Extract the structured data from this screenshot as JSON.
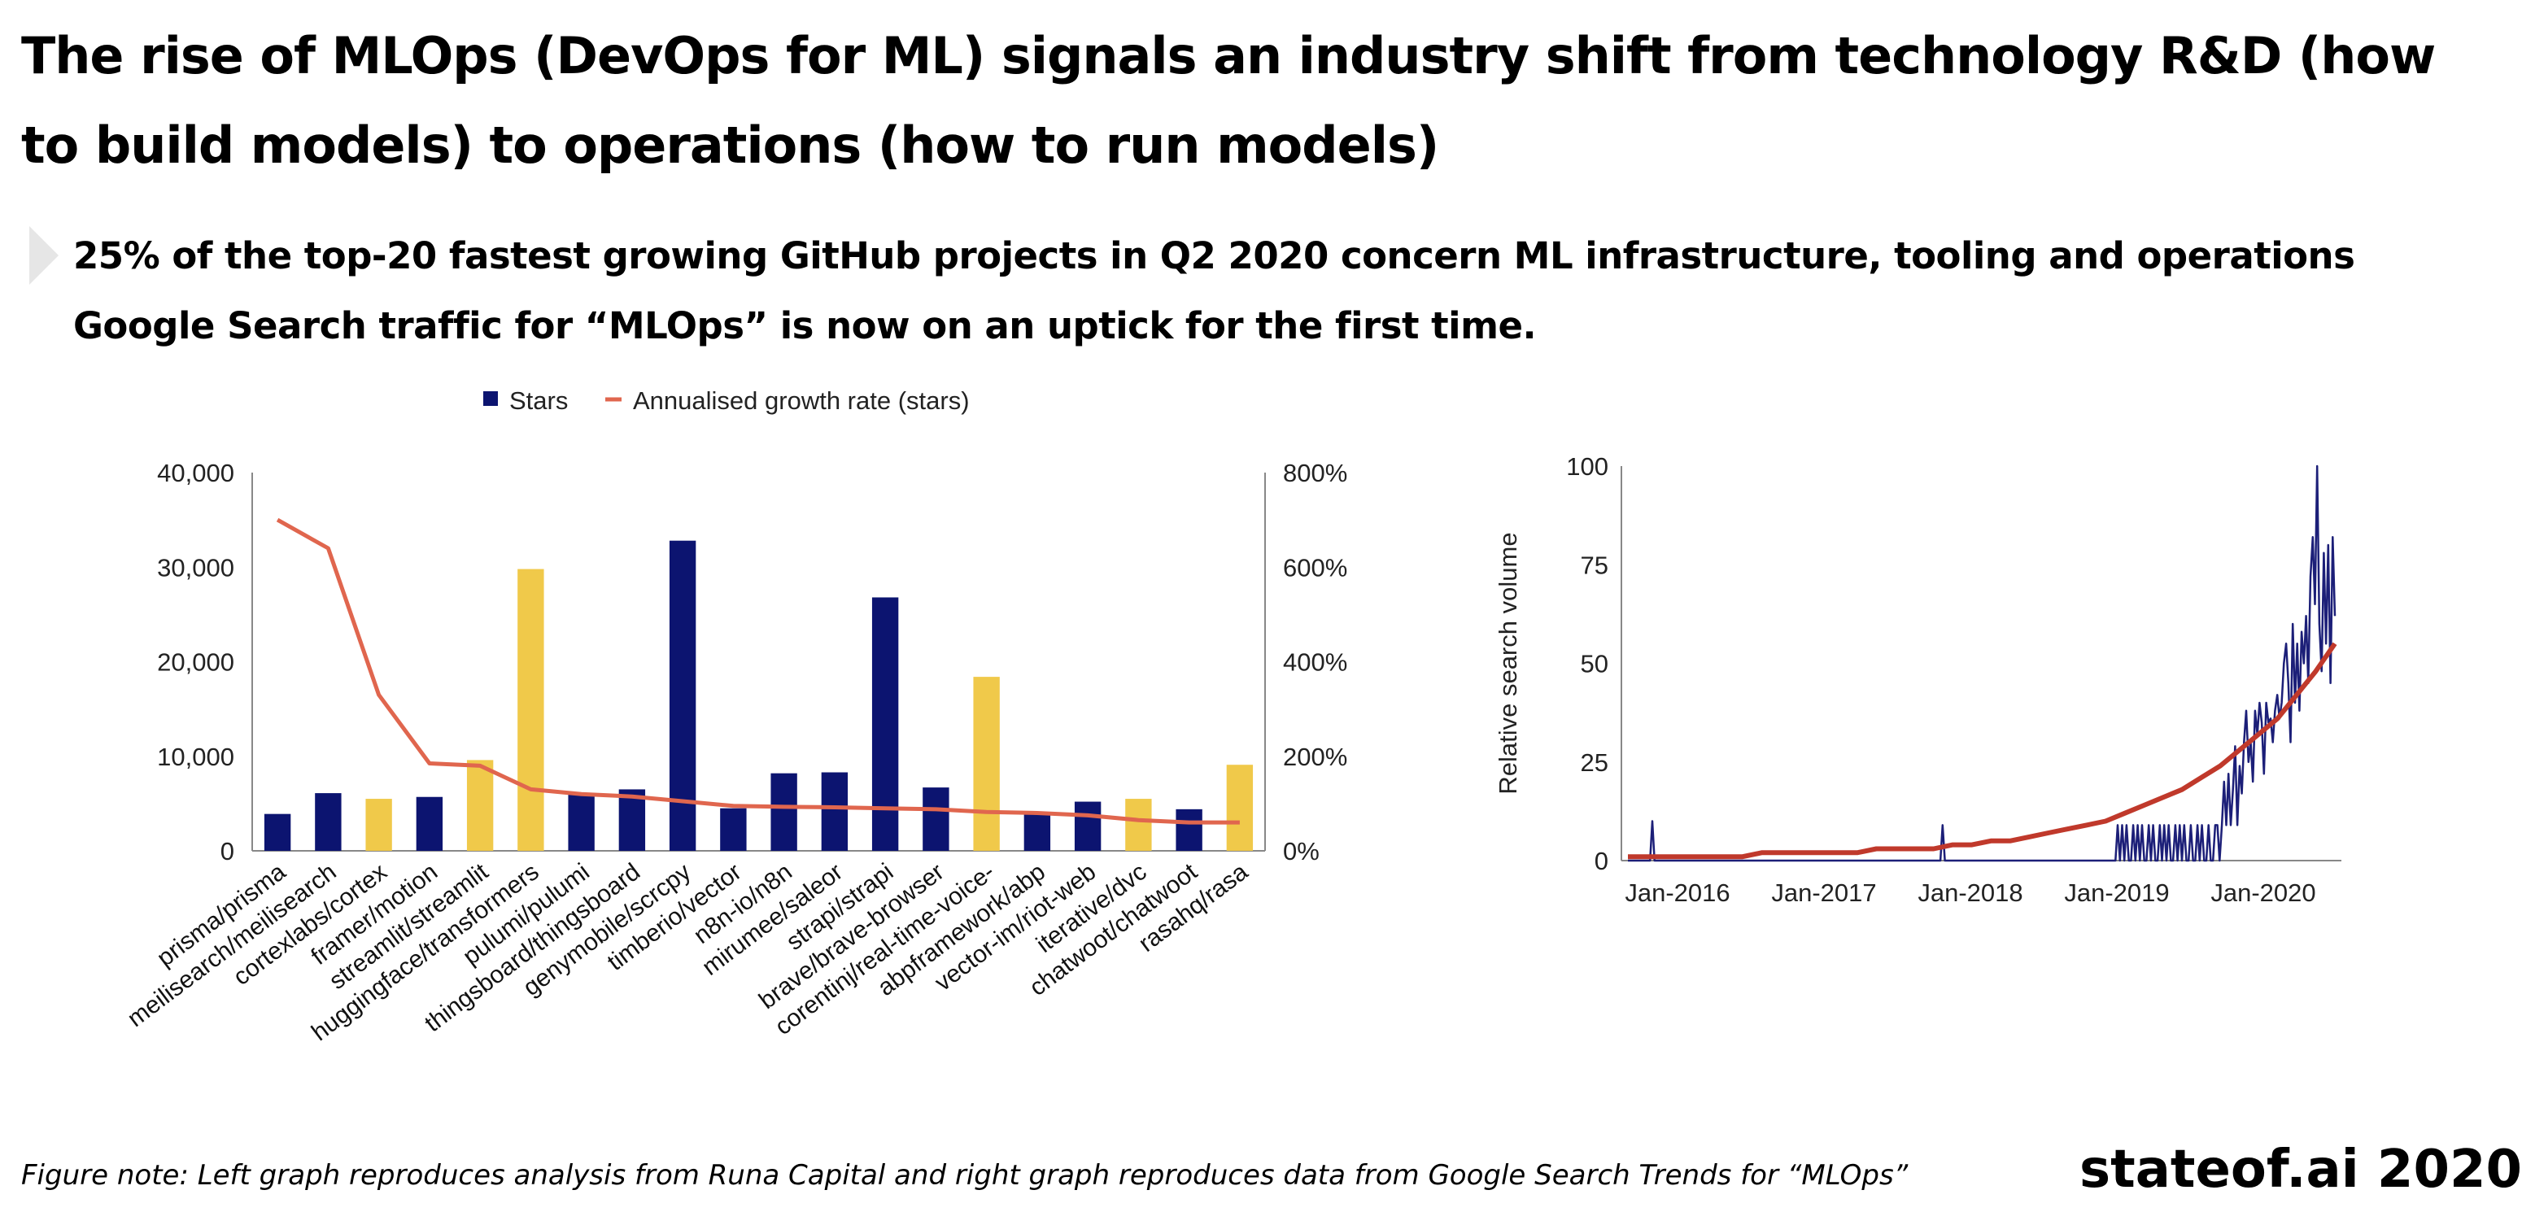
{
  "slide": {
    "title": "The rise of MLOps (DevOps for ML) signals an industry shift from technology R&D (how to build models) to operations (how to run models)",
    "subtitle_line1": "25% of the top-20 fastest growing GitHub projects in Q2 2020 concern ML infrastructure, tooling and operations",
    "subtitle_line2": "Google Search traffic for “MLOps” is now on an uptick for the first time.",
    "footnote": "Figure note: Left graph reproduces analysis from Runa Capital and right graph reproduces data from Google Search Trends for “MLOps”",
    "brand": "stateof.ai 2020"
  },
  "colors": {
    "bar_default": "#0c1470",
    "bar_highlight": "#f0c94a",
    "growth_line": "#e0664e",
    "trend_line": "#1c1f78",
    "trend_fit": "#c0392b",
    "axis": "#888888"
  },
  "chart_data": [
    {
      "type": "bar",
      "legend": [
        "Stars",
        "Annualised growth rate (stars)"
      ],
      "categories": [
        "prisma/prisma",
        "meilisearch/meilisearch",
        "cortexlabs/cortex",
        "framer/motion",
        "streamlit/streamlit",
        "huggingface/transformers",
        "pulumi/pulumi",
        "thingsboard/thingsboard",
        "genymobile/scrcpy",
        "timberio/vector",
        "n8n-io/n8n",
        "mirumee/saleor",
        "strapi/strapi",
        "brave/brave-browser",
        "corentinj/real-time-voice-",
        "abpframework/abp",
        "vector-im/riot-web",
        "iterative/dvc",
        "chatwoot/chatwoot",
        "rasahq/rasa"
      ],
      "highlighted": [
        false,
        false,
        true,
        false,
        true,
        true,
        false,
        false,
        false,
        false,
        false,
        false,
        false,
        false,
        true,
        false,
        false,
        true,
        false,
        true
      ],
      "series": [
        {
          "name": "Stars",
          "axis": "left",
          "values": [
            3900,
            6100,
            5500,
            5700,
            9600,
            29800,
            6000,
            6500,
            32800,
            4500,
            8200,
            8300,
            26800,
            6700,
            18400,
            4000,
            5200,
            5500,
            4400,
            9100
          ]
        },
        {
          "name": "Annualised growth rate (stars)",
          "axis": "right",
          "values": [
            700,
            640,
            330,
            185,
            180,
            130,
            120,
            115,
            105,
            95,
            93,
            92,
            90,
            88,
            82,
            80,
            75,
            65,
            60,
            60
          ]
        }
      ],
      "ylim_left": [
        0,
        40000
      ],
      "ylim_right": [
        0,
        800
      ],
      "left_ticks": [
        "40,000",
        "30,000",
        "20,000",
        "10,000",
        "0"
      ],
      "right_ticks": [
        "800%",
        "600%",
        "400%",
        "200%",
        "0%"
      ]
    },
    {
      "type": "line",
      "ylabel": "Relative search volume",
      "yticks": [
        "100",
        "75",
        "50",
        "25",
        "0"
      ],
      "xticks": [
        "Jan-2016",
        "Jan-2017",
        "Jan-2018",
        "Jan-2019",
        "Jan-2020"
      ],
      "ylim": [
        0,
        100
      ],
      "weekly_index": {
        "note": "weekly relative search volume, start Oct-2015",
        "values": [
          0,
          0,
          0,
          0,
          0,
          0,
          0,
          0,
          0,
          0,
          0,
          10,
          0,
          0,
          0,
          0,
          0,
          0,
          0,
          0,
          0,
          0,
          0,
          0,
          0,
          0,
          0,
          0,
          0,
          0,
          0,
          0,
          0,
          0,
          0,
          0,
          0,
          0,
          0,
          0,
          0,
          0,
          0,
          0,
          0,
          0,
          0,
          0,
          0,
          0,
          0,
          0,
          0,
          0,
          0,
          0,
          0,
          0,
          0,
          0,
          0,
          0,
          0,
          0,
          0,
          0,
          0,
          0,
          0,
          0,
          0,
          0,
          0,
          0,
          0,
          0,
          0,
          0,
          0,
          0,
          0,
          0,
          0,
          0,
          0,
          0,
          0,
          0,
          0,
          0,
          0,
          0,
          0,
          0,
          0,
          0,
          0,
          0,
          0,
          0,
          0,
          0,
          0,
          0,
          0,
          0,
          0,
          0,
          0,
          0,
          0,
          0,
          0,
          0,
          0,
          0,
          0,
          0,
          0,
          0,
          0,
          0,
          0,
          0,
          0,
          0,
          0,
          0,
          0,
          0,
          0,
          0,
          0,
          0,
          0,
          0,
          0,
          0,
          0,
          0,
          0,
          0,
          9,
          0,
          0,
          0,
          0,
          0,
          0,
          0,
          0,
          0,
          0,
          0,
          0,
          0,
          0,
          0,
          0,
          0,
          0,
          0,
          0,
          0,
          0,
          0,
          0,
          0,
          0,
          0,
          0,
          0,
          0,
          0,
          0,
          0,
          0,
          0,
          0,
          0,
          0,
          0,
          0,
          0,
          0,
          0,
          0,
          0,
          0,
          0,
          0,
          0,
          0,
          0,
          0,
          0,
          0,
          0,
          0,
          0,
          0,
          0,
          0,
          0,
          0,
          0,
          0,
          0,
          0,
          0,
          0,
          0,
          0,
          0,
          0,
          0,
          0,
          0,
          0,
          0,
          0,
          9,
          0,
          9,
          0,
          9,
          0,
          0,
          9,
          0,
          9,
          0,
          9,
          0,
          0,
          9,
          0,
          9,
          0,
          0,
          9,
          0,
          9,
          0,
          9,
          0,
          0,
          9,
          0,
          9,
          0,
          9,
          0,
          0,
          9,
          0,
          0,
          9,
          0,
          9,
          0,
          0,
          9,
          0,
          0,
          9,
          9,
          0,
          9,
          20,
          9,
          22,
          9,
          18,
          29,
          9,
          24,
          17,
          30,
          38,
          25,
          30,
          20,
          38,
          32,
          40,
          35,
          22,
          40,
          35,
          36,
          30,
          38,
          42,
          36,
          40,
          50,
          55,
          45,
          30,
          60,
          40,
          55,
          38,
          58,
          50,
          62,
          45,
          72,
          82,
          65,
          100,
          60,
          48,
          78,
          55,
          80,
          45,
          82,
          62
        ],
        "fit_values": [
          1,
          1,
          1,
          1,
          1,
          1,
          1,
          2,
          2,
          2,
          2,
          2,
          2,
          3,
          3,
          3,
          3,
          4,
          4,
          5,
          5,
          6,
          7,
          8,
          9,
          10,
          12,
          14,
          16,
          18,
          21,
          24,
          28,
          32,
          36,
          42,
          48,
          55
        ]
      }
    }
  ]
}
